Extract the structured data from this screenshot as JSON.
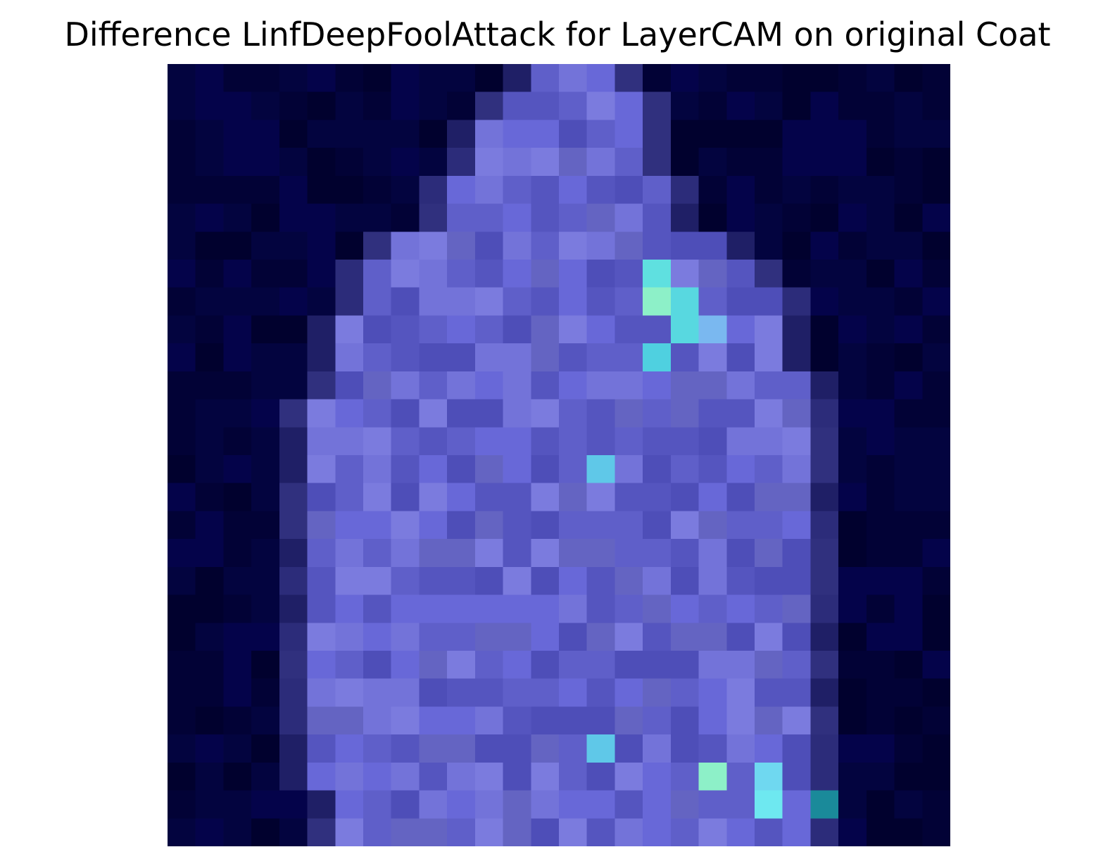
{
  "title": "Difference LinfDeepFoolAttack for LayerCAM on original Coat",
  "image": {
    "subject": "pixelated coat silhouette heatmap",
    "background_color": "#02023a",
    "grid": [
      28,
      28
    ],
    "palette": {
      "background": [
        "#020236",
        "#03043f",
        "#04034a",
        "#01012e"
      ],
      "coat_body": [
        "#5f5fc9",
        "#6868d8",
        "#5555bf",
        "#7373d9",
        "#6464c2",
        "#4e4eb8",
        "#7b7bde"
      ],
      "highlight": [
        "#58d8e0",
        "#8df0c8",
        "#6ee8f0",
        "#5fb8e8",
        "#6fa8f0"
      ],
      "dark_edge": [
        "#2c2c7a",
        "#1f1f66",
        "#30307e"
      ]
    }
  }
}
